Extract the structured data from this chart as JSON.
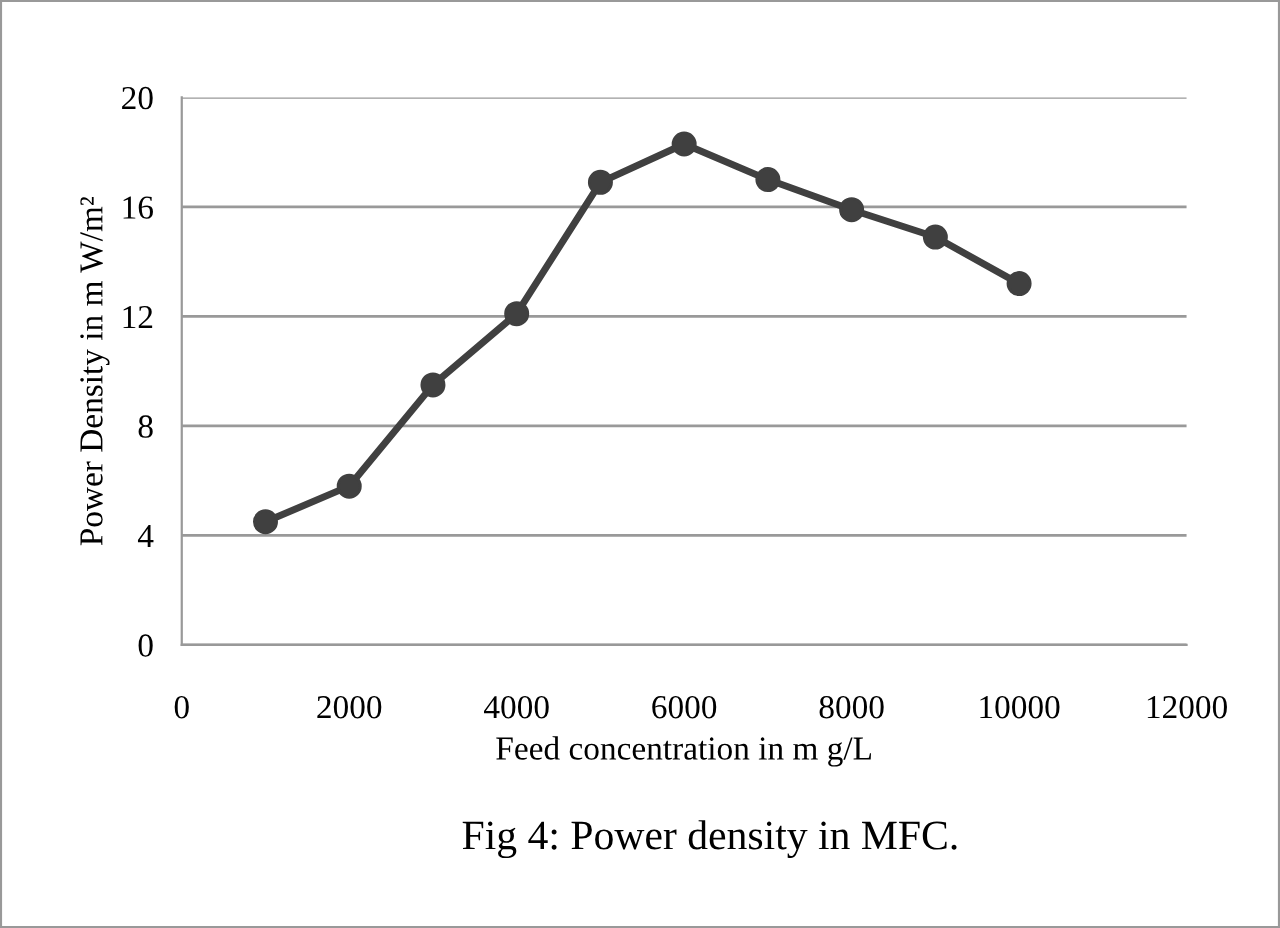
{
  "chart_data": {
    "type": "line",
    "xlabel": "Feed concentration in m g/L",
    "ylabel": "Power Density in m W/m²",
    "annotations": [
      "Fig 4: Power density in MFC."
    ],
    "x": [
      1000,
      2000,
      3000,
      4000,
      5000,
      6000,
      7000,
      8000,
      9000,
      10000
    ],
    "series": [
      {
        "color": "#404040",
        "values": [
          4.5,
          5.8,
          9.5,
          12.1,
          16.9,
          18.3,
          17.0,
          15.9,
          14.9,
          13.2
        ]
      }
    ],
    "xlim": [
      0,
      12000
    ],
    "xticks": [
      0,
      2000,
      4000,
      6000,
      8000,
      10000,
      12000
    ],
    "ylim": [
      0,
      20
    ],
    "yticks": [
      0,
      4,
      8,
      12,
      16,
      20
    ],
    "grid": "y",
    "legend": false,
    "marker": "circle",
    "line_style": "solid"
  }
}
